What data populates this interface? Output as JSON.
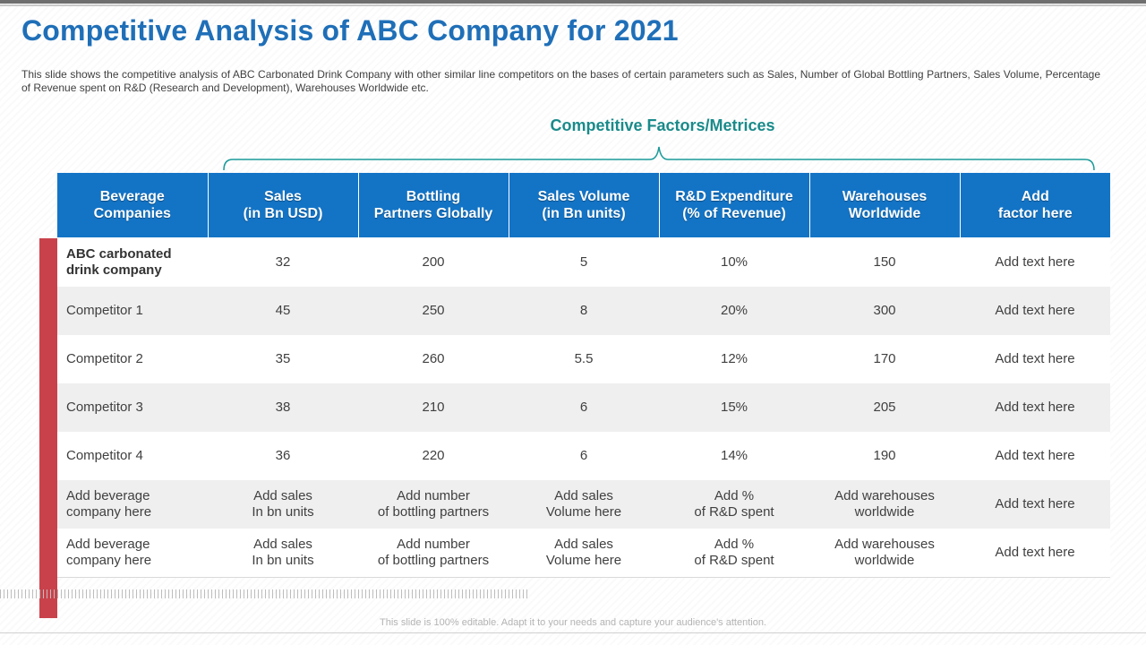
{
  "title": "Competitive Analysis of ABC Company for 2021",
  "description": "This slide shows the competitive analysis of ABC Carbonated Drink Company with other similar line competitors on the bases of certain parameters such as Sales, Number of Global Bottling Partners, Sales Volume, Percentage of Revenue spent on R&D (Research and Development), Warehouses Worldwide etc.",
  "section_heading": "Competitive Factors/Metrices",
  "table": {
    "headers": [
      "Beverage\nCompanies",
      "Sales\n(in Bn USD)",
      "Bottling\nPartners Globally",
      "Sales Volume\n(in Bn units)",
      "R&D Expenditure\n(% of Revenue)",
      "Warehouses\nWorldwide",
      "Add\nfactor here"
    ],
    "rows": [
      [
        "ABC carbonated\ndrink company",
        "32",
        "200",
        "5",
        "10%",
        "150",
        "Add text here"
      ],
      [
        "Competitor 1",
        "45",
        "250",
        "8",
        "20%",
        "300",
        "Add text here"
      ],
      [
        "Competitor 2",
        "35",
        "260",
        "5.5",
        "12%",
        "170",
        "Add text here"
      ],
      [
        "Competitor 3",
        "38",
        "210",
        "6",
        "15%",
        "205",
        "Add text here"
      ],
      [
        "Competitor 4",
        "36",
        "220",
        "6",
        "14%",
        "190",
        "Add text here"
      ],
      [
        "Add beverage\ncompany here",
        "Add sales\nIn bn units",
        "Add number\nof bottling partners",
        "Add sales\nVolume here",
        "Add %\nof R&D spent",
        "Add warehouses\nworldwide",
        "Add text here"
      ],
      [
        "Add beverage\ncompany here",
        "Add sales\nIn bn units",
        "Add number\nof bottling partners",
        "Add sales\nVolume here",
        "Add %\nof R&D spent",
        "Add warehouses\nworldwide",
        "Add text here"
      ]
    ]
  },
  "footer": "This slide is 100% editable. Adapt it to your needs and capture your audience's attention.",
  "colors": {
    "title": "#1f6fb8",
    "header_bg": "#1374c6",
    "heading_teal": "#1a8a8a",
    "accent_red": "#c9424b",
    "row_alt": "#efefef"
  }
}
